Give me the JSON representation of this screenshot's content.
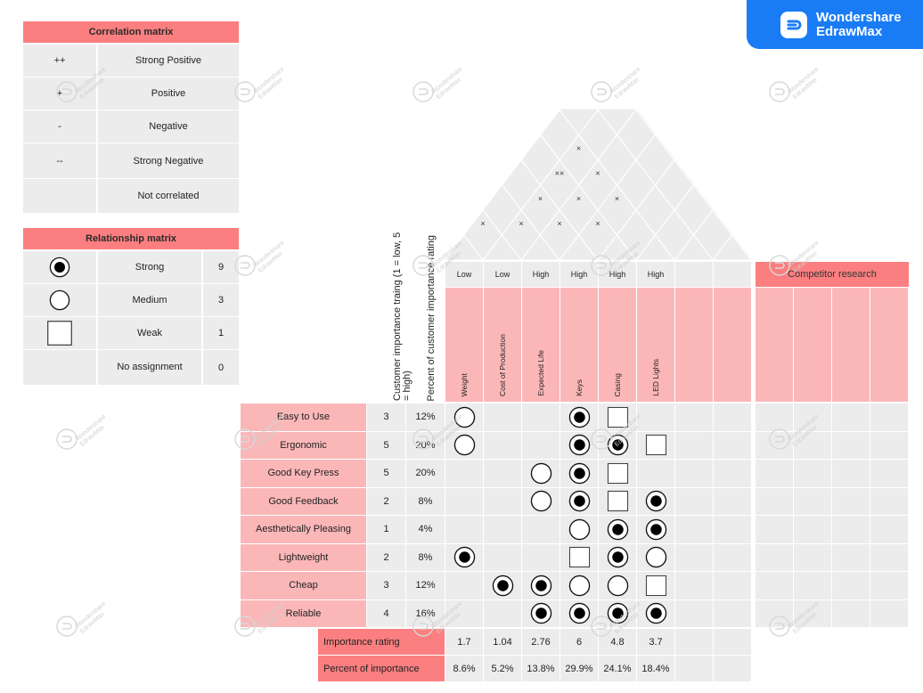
{
  "brand": {
    "line1": "Wondershare",
    "line2": "EdrawMax"
  },
  "watermark": {
    "text1": "Wondershare",
    "text2": "EdrawMax"
  },
  "correlation_legend": {
    "title": "Correlation matrix",
    "rows": [
      {
        "symbol": "++",
        "label": "Strong Positive"
      },
      {
        "symbol": "+",
        "label": "Positive"
      },
      {
        "symbol": "-",
        "label": "Negative"
      },
      {
        "symbol": "--",
        "label": "Strong Negative"
      },
      {
        "symbol": "",
        "label": "Not correlated"
      }
    ]
  },
  "relationship_legend": {
    "title": "Relationship matrix",
    "rows": [
      {
        "symbol": "strong",
        "label": "Strong",
        "value": "9"
      },
      {
        "symbol": "medium",
        "label": "Medium",
        "value": "3"
      },
      {
        "symbol": "weak",
        "label": "Weak",
        "value": "1"
      },
      {
        "symbol": "none",
        "label": "No assignment",
        "value": "0"
      }
    ]
  },
  "column_headers": {
    "importance": "Customer importance traing (1 = low, 5 = high)",
    "percent": "Percent of customer importance rating"
  },
  "directions": [
    "Low",
    "Low",
    "High",
    "High",
    "High",
    "High",
    "",
    ""
  ],
  "tech_requirements": [
    "Weight",
    "Cost of Production",
    "Expected Life",
    "Keys",
    "Casing",
    "LED Lights",
    "",
    ""
  ],
  "competitor_title": "Competitor research",
  "customer_requirements": [
    {
      "name": "Easy to Use",
      "importance": "3",
      "percent": "12%",
      "rel": [
        "medium",
        "",
        "",
        "strong",
        "weak",
        "",
        "",
        ""
      ]
    },
    {
      "name": "Ergonomic",
      "importance": "5",
      "percent": "20%",
      "rel": [
        "medium",
        "",
        "",
        "strong",
        "strong",
        "weak",
        "",
        ""
      ]
    },
    {
      "name": "Good Key Press",
      "importance": "5",
      "percent": "20%",
      "rel": [
        "",
        "",
        "medium",
        "strong",
        "weak",
        "",
        "",
        ""
      ]
    },
    {
      "name": "Good Feedback",
      "importance": "2",
      "percent": "8%",
      "rel": [
        "",
        "",
        "medium",
        "strong",
        "weak",
        "strong",
        "",
        ""
      ]
    },
    {
      "name": "Aesthetically Pleasing",
      "importance": "1",
      "percent": "4%",
      "rel": [
        "",
        "",
        "",
        "medium",
        "strong",
        "strong",
        "",
        ""
      ]
    },
    {
      "name": "Lightweight",
      "importance": "2",
      "percent": "8%",
      "rel": [
        "strong",
        "",
        "",
        "weak",
        "strong",
        "medium",
        "",
        ""
      ]
    },
    {
      "name": "Cheap",
      "importance": "3",
      "percent": "12%",
      "rel": [
        "",
        "strong",
        "strong",
        "medium",
        "medium",
        "weak",
        "",
        ""
      ]
    },
    {
      "name": "Reliable",
      "importance": "4",
      "percent": "16%",
      "rel": [
        "",
        "",
        "strong",
        "strong",
        "strong",
        "strong",
        "",
        ""
      ]
    }
  ],
  "importance_rating": {
    "label": "Importance rating",
    "values": [
      "1.7",
      "1.04",
      "2.76",
      "6",
      "4.8",
      "3.7",
      "",
      ""
    ]
  },
  "percent_importance": {
    "label": "Percent of importance",
    "values": [
      "8.6%",
      "5.2%",
      "13.8%",
      "29.9%",
      "24.1%",
      "18.4%",
      "",
      ""
    ]
  },
  "roof_marks": [
    {
      "pair": [
        "Weight",
        "Cost of Production"
      ],
      "symbol": "×"
    },
    {
      "pair": [
        "Cost of Production",
        "Expected Life"
      ],
      "symbol": "×"
    },
    {
      "pair": [
        "Expected Life",
        "Keys"
      ],
      "symbol": "×"
    },
    {
      "pair": [
        "Cost of Production",
        "Keys"
      ],
      "symbol": "×"
    },
    {
      "pair": [
        "Expected Life",
        "Casing"
      ],
      "symbol": "×"
    },
    {
      "pair": [
        "Keys",
        "Casing"
      ],
      "symbol": "×"
    },
    {
      "pair": [
        "Cost of Production",
        "Casing"
      ],
      "symbol": "××"
    },
    {
      "pair": [
        "Expected Life",
        "LED Lights"
      ],
      "symbol": "×"
    },
    {
      "pair": [
        "Keys",
        "LED Lights"
      ],
      "symbol": "×"
    },
    {
      "pair": [
        "Cost of Production",
        "LED Lights"
      ],
      "symbol": "×"
    }
  ]
}
